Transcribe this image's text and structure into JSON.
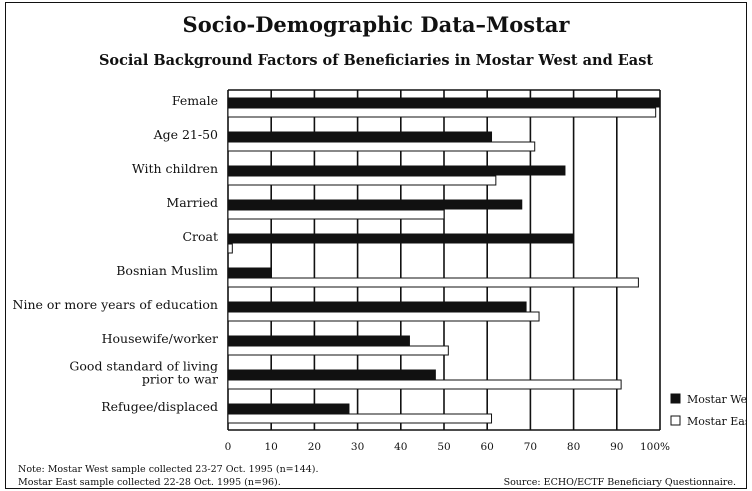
{
  "chart_data": {
    "type": "bar",
    "orientation": "horizontal",
    "title": "Socio-Demographic Data–Mostar",
    "subtitle": "Social Background Factors of Beneficiaries in Mostar West and East",
    "categories": [
      "Female",
      "Age 21-50",
      "With children",
      "Married",
      "Croat",
      "Bosnian Muslim",
      "Nine or more years of education",
      "Housewife/worker",
      "Good standard of living prior to war",
      "Refugee/displaced"
    ],
    "category_lines": [
      [
        "Female"
      ],
      [
        "Age 21-50"
      ],
      [
        "With children"
      ],
      [
        "Married"
      ],
      [
        "Croat"
      ],
      [
        "Bosnian Muslim"
      ],
      [
        "Nine or more years of education"
      ],
      [
        "Housewife/worker"
      ],
      [
        "Good standard of living",
        "prior to war"
      ],
      [
        "Refugee/displaced"
      ]
    ],
    "series": [
      {
        "name": "Mostar West",
        "color": "#111111",
        "values": [
          100,
          61,
          78,
          68,
          80,
          10,
          69,
          42,
          48,
          28
        ]
      },
      {
        "name": "Mostar East",
        "color": "#ffffff",
        "values": [
          99,
          71,
          62,
          50,
          1,
          95,
          72,
          51,
          91,
          61
        ]
      }
    ],
    "x_ticks": [
      "0",
      "10",
      "20",
      "30",
      "40",
      "50",
      "60",
      "70",
      "80",
      "90",
      "100%"
    ],
    "xlim": [
      0,
      100
    ],
    "grid": true,
    "legend_position": "right"
  },
  "notes": {
    "line1": "Note: Mostar West sample collected 23-27 Oct. 1995 (n=144).",
    "line2": "Mostar East sample collected 22-28 Oct. 1995 (n=96).",
    "source": "Source: ECHO/ECTF Beneficiary Questionnaire."
  }
}
